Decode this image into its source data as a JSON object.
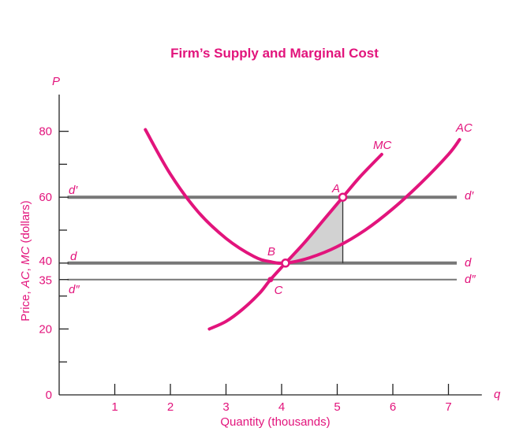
{
  "chart_data": {
    "type": "line",
    "title": "Firm’s Supply and Marginal Cost",
    "xlabel": "Quantity (thousands)",
    "ylabel": {
      "pre": "Price, ",
      "ac": "AC",
      "comma": ", ",
      "mc": "MC",
      "post": " (dollars)"
    },
    "x_axis_symbol": "q",
    "y_axis_symbol": "P",
    "xlim": [
      0,
      7.6
    ],
    "ylim": [
      0,
      92
    ],
    "x_ticks": [
      1,
      2,
      3,
      4,
      5,
      6,
      7
    ],
    "y_ticks_labeled": [
      0,
      20,
      35,
      40,
      60,
      80
    ],
    "y_ticks_minor": [
      10,
      30,
      50,
      70
    ],
    "series": [
      {
        "name": "MC",
        "x": [
          2.7,
          3.0,
          3.3,
          3.6,
          3.8,
          4.07,
          4.4,
          4.8,
          5.1,
          5.4,
          5.8
        ],
        "y": [
          20,
          22.3,
          26,
          30.8,
          35,
          40,
          46,
          54,
          60,
          66,
          73
        ]
      },
      {
        "name": "AC",
        "x": [
          1.55,
          2.0,
          2.5,
          3.0,
          3.5,
          3.8,
          4.07,
          4.5,
          5.0,
          5.5,
          6.0,
          6.5,
          7.0,
          7.2
        ],
        "y": [
          80.5,
          67,
          55.5,
          47.5,
          42,
          40.4,
          40,
          41.6,
          45,
          50,
          56.5,
          64.2,
          73,
          77.5
        ]
      }
    ],
    "lines": [
      {
        "name": "d′",
        "y": 60,
        "x_range": [
          0.15,
          7.15
        ],
        "left_label": "d′",
        "right_label": "d′",
        "weight": "heavy"
      },
      {
        "name": "d",
        "y": 40,
        "x_range": [
          0.15,
          7.15
        ],
        "left_label": "d",
        "right_label": "d",
        "weight": "heavy"
      },
      {
        "name": "d″",
        "y": 35,
        "x_range": [
          0.15,
          7.15
        ],
        "left_label": "d″",
        "right_label": "d″",
        "weight": "light"
      }
    ],
    "points": [
      {
        "label": "A",
        "x": 5.1,
        "y": 60
      },
      {
        "label": "B",
        "x": 4.07,
        "y": 40
      },
      {
        "label": "C",
        "x": 3.8,
        "y": 35
      }
    ],
    "shaded_region": {
      "between": [
        "MC",
        "d"
      ],
      "x_range": [
        4.07,
        5.1
      ]
    },
    "vertical_drop": {
      "x": 5.1,
      "from": 60,
      "to": 40
    },
    "grid": false
  },
  "colors": {
    "accent": "#e2147c",
    "axis": "#222222",
    "line_gray": "#777777",
    "shade": "#d2d2d2"
  }
}
